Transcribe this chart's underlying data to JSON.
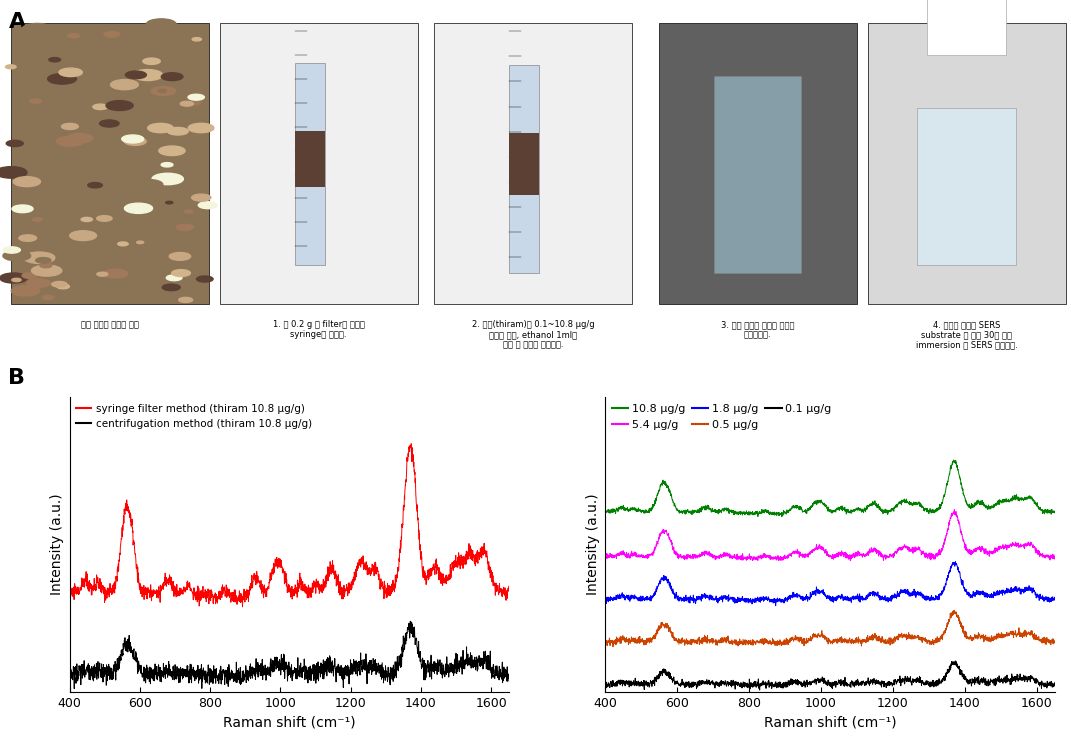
{
  "title_A": "A",
  "title_B": "B",
  "xmin": 400,
  "xmax": 1600,
  "xlabel": "Raman shift (cm⁻¹)",
  "ylabel": "Intensity (a.u.)",
  "legend_left": [
    {
      "label": "syringe filter method (thiram 10.8 μg/g)",
      "color": "#ff0000"
    },
    {
      "label": "centrifugation method (thiram 10.8 μg/g)",
      "color": "#000000"
    }
  ],
  "legend_right_row1": [
    {
      "label": "10.8 μg/g",
      "color": "#008000"
    },
    {
      "label": "5.4 μg/g",
      "color": "#ff00ff"
    },
    {
      "label": "1.8 μg/g",
      "color": "#0000ff"
    }
  ],
  "legend_right_row2": [
    {
      "label": "0.5 μg/g",
      "color": "#cc4400"
    },
    {
      "label": "0.1 μg/g",
      "color": "#000000"
    }
  ],
  "bg_color": "#ffffff",
  "captions": [
    "바짝 건조된 원예용 상토",
    "1. 흐 0.2 g 를 filter를 장착한\nsyringe에 넣는다.",
    "2. 농약(thiram)을 0.1~10.8 μg/g\n농도로 놓고, ethanol 1ml을\n넣은 후 충분히 섬어준다.",
    "3. 전체 용액을 필터를 이용해\n여과시킨다.",
    "4. 여과된 용액에 SERS\nsubstrate 를 넣고 30분 동안\nimmersion 후 SERS 측정한다."
  ],
  "photo_colors": [
    [
      "#8B6040",
      "#a07848",
      "#c09060",
      "#786030"
    ],
    [
      "#d8d8e8",
      "#c0c8d8",
      "#b8c0d0",
      "#a8b8cc"
    ],
    [
      "#c8c8c0",
      "#b8b8b0",
      "#d0d0c8",
      "#a8a8a0"
    ],
    [
      "#505850",
      "#404840",
      "#606860",
      "#383830"
    ],
    [
      "#c8c8c8",
      "#b8b8b8",
      "#d0d0d0",
      "#a8a8a8"
    ]
  ]
}
